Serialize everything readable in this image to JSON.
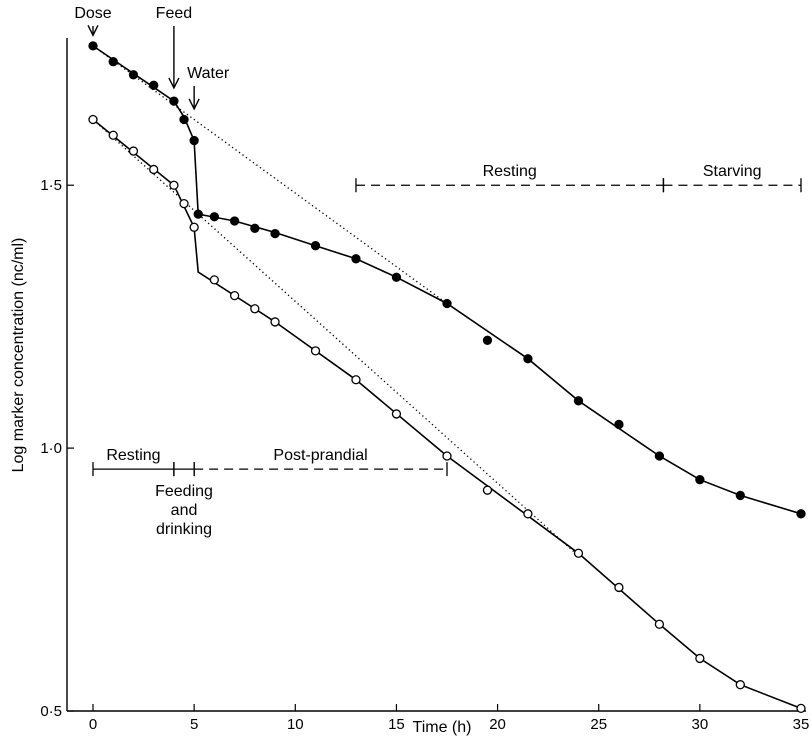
{
  "chart_data": {
    "type": "line",
    "xlabel": "Time (h)",
    "ylabel": "Log marker concentration (nc/ml)",
    "xlim": [
      0,
      35
    ],
    "ylim": [
      0.5,
      1.78
    ],
    "grid": false,
    "x_ticks": [
      0,
      5,
      10,
      15,
      20,
      25,
      30,
      35
    ],
    "x_tick_labels": [
      "0",
      "5",
      "10",
      "15",
      "20",
      "25",
      "30",
      "35"
    ],
    "y_ticks": [
      0.5,
      1.0,
      1.5
    ],
    "y_tick_labels": [
      "0·5",
      "1·0",
      "1·5"
    ],
    "series": [
      {
        "marker": "filled",
        "points": [
          [
            0,
            1.765
          ],
          [
            1,
            1.735
          ],
          [
            2,
            1.71
          ],
          [
            3,
            1.69
          ],
          [
            4,
            1.66
          ],
          [
            4.5,
            1.625
          ],
          [
            5,
            1.585
          ],
          [
            5.2,
            1.445
          ],
          [
            6,
            1.44
          ],
          [
            7,
            1.432
          ],
          [
            8,
            1.418
          ],
          [
            9,
            1.408
          ],
          [
            11,
            1.385
          ],
          [
            13,
            1.36
          ],
          [
            15,
            1.325
          ],
          [
            17.5,
            1.275
          ],
          [
            19.5,
            1.205
          ],
          [
            21.5,
            1.17
          ],
          [
            24,
            1.09
          ],
          [
            26,
            1.045
          ],
          [
            28,
            0.985
          ],
          [
            30,
            0.94
          ],
          [
            32,
            0.91
          ],
          [
            35,
            0.875
          ]
        ],
        "line": [
          [
            0,
            1.765
          ],
          [
            4,
            1.66
          ],
          [
            4.5,
            1.63
          ],
          [
            5,
            1.585
          ],
          [
            5.2,
            1.445
          ],
          [
            7,
            1.432
          ],
          [
            9,
            1.41
          ],
          [
            11,
            1.385
          ],
          [
            13,
            1.36
          ],
          [
            15,
            1.325
          ],
          [
            17.5,
            1.275
          ],
          [
            21.5,
            1.17
          ],
          [
            24,
            1.09
          ],
          [
            28,
            0.985
          ],
          [
            30,
            0.94
          ],
          [
            32,
            0.91
          ],
          [
            35,
            0.875
          ]
        ],
        "dotted": [
          [
            0,
            1.765
          ],
          [
            17.5,
            1.275
          ]
        ]
      },
      {
        "marker": "open",
        "points": [
          [
            0,
            1.625
          ],
          [
            1,
            1.595
          ],
          [
            2,
            1.565
          ],
          [
            3,
            1.53
          ],
          [
            4,
            1.5
          ],
          [
            4.5,
            1.465
          ],
          [
            5,
            1.42
          ],
          [
            6,
            1.32
          ],
          [
            7,
            1.29
          ],
          [
            8,
            1.265
          ],
          [
            9,
            1.24
          ],
          [
            11,
            1.185
          ],
          [
            13,
            1.13
          ],
          [
            15,
            1.065
          ],
          [
            17.5,
            0.985
          ],
          [
            19.5,
            0.92
          ],
          [
            21.5,
            0.875
          ],
          [
            24,
            0.8
          ],
          [
            26,
            0.735
          ],
          [
            28,
            0.665
          ],
          [
            30,
            0.6
          ],
          [
            32,
            0.55
          ],
          [
            35,
            0.505
          ]
        ],
        "line": [
          [
            0,
            1.625
          ],
          [
            4,
            1.5
          ],
          [
            5,
            1.42
          ],
          [
            5.2,
            1.335
          ],
          [
            9,
            1.24
          ],
          [
            13,
            1.13
          ],
          [
            17.5,
            0.985
          ],
          [
            24,
            0.8
          ],
          [
            28,
            0.665
          ],
          [
            30,
            0.6
          ],
          [
            32,
            0.55
          ],
          [
            35,
            0.505
          ]
        ],
        "dotted": [
          [
            0,
            1.625
          ],
          [
            24,
            0.795
          ]
        ]
      }
    ],
    "period_bars": [
      {
        "y": 1.5,
        "segments": [
          {
            "from": 13,
            "to": 28.2,
            "label": "Resting",
            "style": "dashed"
          },
          {
            "from": 28.2,
            "to": 35,
            "label": "Starving",
            "style": "dashed"
          }
        ]
      },
      {
        "y": 0.96,
        "segments": [
          {
            "from": 0,
            "to": 4,
            "label": "Resting",
            "style": "solid"
          },
          {
            "from": 4,
            "to": 5,
            "label": "Feeding\nand\ndrinking",
            "style": "solid",
            "label_below": true
          },
          {
            "from": 5,
            "to": 17.5,
            "label": "Post-prandial",
            "style": "dashed"
          }
        ]
      }
    ],
    "annotations": [
      {
        "text": "Dose",
        "x": 0,
        "arrow_to_y": 1.785
      },
      {
        "text": "Feed",
        "x": 4,
        "arrow_to_y": 1.685
      },
      {
        "text": "Water",
        "x": 5,
        "arrow_to_y": 1.645
      }
    ]
  }
}
